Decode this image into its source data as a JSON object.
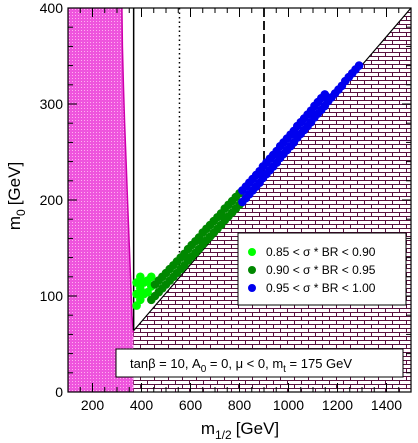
{
  "chart_data": {
    "type": "scatter",
    "xlabel": "m",
    "xlabel_sub": "1/2",
    "xlabel_unit": "[GeV]",
    "ylabel": "m",
    "ylabel_sub": "0",
    "ylabel_unit": "[GeV]",
    "xlim": [
      100,
      1500
    ],
    "ylim": [
      0,
      400
    ],
    "xticks": [
      200,
      400,
      600,
      800,
      1000,
      1200,
      1400
    ],
    "yticks": [
      0,
      100,
      200,
      300,
      400
    ],
    "info_box": {
      "p1": "tanβ = 10, A",
      "p1_sub": "0",
      "p2": " = 0, μ < 0, m",
      "p2_sub": "t",
      "p3": " = 175 GeV"
    },
    "legend": {
      "placement": "right-center",
      "entries": [
        {
          "label": "0.85 < σ * BR < 0.90",
          "color": "#00ff00"
        },
        {
          "label": "0.90 < σ * BR < 0.95",
          "color": "#008800"
        },
        {
          "label": "0.95 < σ * BR < 1.00",
          "color": "#0000ee"
        }
      ]
    },
    "series": [
      {
        "color": "#00ff00",
        "points": [
          [
            380,
            90
          ],
          [
            380,
            102
          ],
          [
            380,
            114
          ],
          [
            395,
            96
          ],
          [
            395,
            108
          ],
          [
            395,
            120
          ],
          [
            410,
            102
          ],
          [
            410,
            114
          ],
          [
            425,
            104
          ],
          [
            425,
            116
          ],
          [
            440,
            110
          ],
          [
            440,
            120
          ]
        ]
      },
      {
        "color": "#008800",
        "points": [
          [
            440,
            96
          ],
          [
            455,
            100
          ],
          [
            455,
            112
          ],
          [
            470,
            104
          ],
          [
            470,
            116
          ],
          [
            485,
            108
          ],
          [
            485,
            120
          ],
          [
            500,
            112
          ],
          [
            500,
            124
          ],
          [
            515,
            116
          ],
          [
            515,
            128
          ],
          [
            530,
            120
          ],
          [
            530,
            132
          ],
          [
            545,
            124
          ],
          [
            545,
            136
          ],
          [
            560,
            128
          ],
          [
            560,
            140
          ],
          [
            575,
            132
          ],
          [
            575,
            144
          ],
          [
            590,
            137
          ],
          [
            590,
            149
          ],
          [
            605,
            141
          ],
          [
            605,
            153
          ],
          [
            620,
            145
          ],
          [
            620,
            157
          ],
          [
            635,
            149
          ],
          [
            635,
            161
          ],
          [
            650,
            154
          ],
          [
            650,
            166
          ],
          [
            665,
            158
          ],
          [
            665,
            170
          ],
          [
            680,
            162
          ],
          [
            680,
            174
          ],
          [
            695,
            166
          ],
          [
            695,
            178
          ],
          [
            710,
            170
          ],
          [
            710,
            182
          ],
          [
            725,
            174
          ],
          [
            725,
            186
          ],
          [
            740,
            179
          ],
          [
            740,
            191
          ],
          [
            755,
            183
          ],
          [
            755,
            195
          ],
          [
            770,
            187
          ],
          [
            770,
            199
          ],
          [
            785,
            191
          ],
          [
            785,
            203
          ],
          [
            800,
            195
          ],
          [
            800,
            207
          ]
        ]
      },
      {
        "color": "#0000ee",
        "points": [
          [
            812,
            198
          ],
          [
            812,
            210
          ],
          [
            826,
            202
          ],
          [
            826,
            214
          ],
          [
            840,
            206
          ],
          [
            840,
            218
          ],
          [
            854,
            210
          ],
          [
            854,
            222
          ],
          [
            868,
            214
          ],
          [
            868,
            226
          ],
          [
            882,
            218
          ],
          [
            882,
            230
          ],
          [
            896,
            223
          ],
          [
            896,
            235
          ],
          [
            910,
            227
          ],
          [
            910,
            239
          ],
          [
            924,
            231
          ],
          [
            924,
            243
          ],
          [
            938,
            235
          ],
          [
            938,
            247
          ],
          [
            952,
            239
          ],
          [
            952,
            251
          ],
          [
            966,
            244
          ],
          [
            966,
            256
          ],
          [
            980,
            248
          ],
          [
            980,
            260
          ],
          [
            994,
            252
          ],
          [
            994,
            264
          ],
          [
            1008,
            256
          ],
          [
            1008,
            268
          ],
          [
            1022,
            260
          ],
          [
            1022,
            272
          ],
          [
            1036,
            265
          ],
          [
            1036,
            277
          ],
          [
            1050,
            269
          ],
          [
            1050,
            281
          ],
          [
            1064,
            273
          ],
          [
            1064,
            285
          ],
          [
            1078,
            277
          ],
          [
            1078,
            289
          ],
          [
            1092,
            281
          ],
          [
            1092,
            293
          ],
          [
            1106,
            286
          ],
          [
            1106,
            298
          ],
          [
            1120,
            290
          ],
          [
            1120,
            302
          ],
          [
            1134,
            294
          ],
          [
            1134,
            306
          ],
          [
            1148,
            298
          ],
          [
            1148,
            310
          ],
          [
            1162,
            303
          ],
          [
            1176,
            307
          ],
          [
            1190,
            311
          ],
          [
            1204,
            315
          ],
          [
            1218,
            319
          ],
          [
            1232,
            324
          ],
          [
            1246,
            328
          ],
          [
            1260,
            332
          ],
          [
            1274,
            336
          ],
          [
            1288,
            340
          ]
        ]
      }
    ],
    "boundary_line": [
      [
        200,
        0
      ],
      [
        214,
        15
      ],
      [
        232,
        27
      ],
      [
        253,
        36
      ],
      [
        278,
        42
      ],
      [
        306,
        48
      ],
      [
        336,
        56
      ],
      [
        368,
        64
      ],
      [
        1500,
        400
      ]
    ],
    "magenta_region_edge": [
      [
        320,
        400
      ],
      [
        322,
        360
      ],
      [
        326,
        320
      ],
      [
        331,
        280
      ],
      [
        337,
        240
      ],
      [
        343,
        200
      ],
      [
        349,
        160
      ],
      [
        355,
        120
      ],
      [
        361,
        80
      ],
      [
        367,
        62
      ]
    ],
    "solid_line_x": 368,
    "dotted_line_x": 555,
    "dashed_line_x": 900
  }
}
